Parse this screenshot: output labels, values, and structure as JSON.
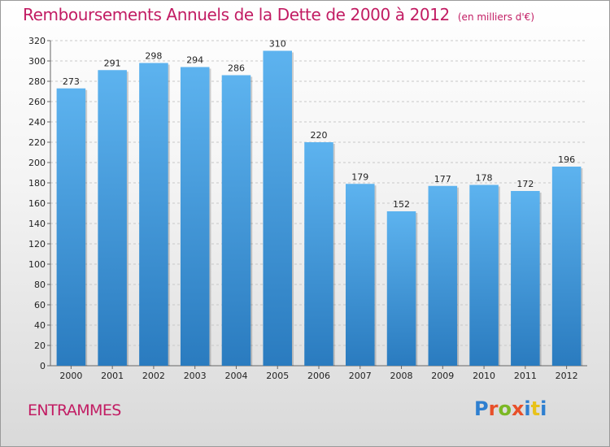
{
  "title": "Remboursements Annuels de la Dette de 2000 à 2012",
  "unit": "(en milliers d'€)",
  "commune": "ENTRAMMES",
  "logo": {
    "letters": [
      "P",
      "r",
      "o",
      "x",
      "i",
      "t",
      "i"
    ],
    "colors": [
      "#2e7fd0",
      "#e8502a",
      "#7bb824",
      "#e8502a",
      "#2e7fd0",
      "#e8c21a",
      "#2e7fd0"
    ]
  },
  "colors": {
    "bar_top": "#5db3ef",
    "bar_bottom": "#2a7bbf",
    "accent": "#c21c63"
  },
  "chart_data": {
    "type": "bar",
    "title": "Remboursements Annuels de la Dette de 2000 à 2012",
    "categories": [
      "2000",
      "2001",
      "2002",
      "2003",
      "2004",
      "2005",
      "2006",
      "2007",
      "2008",
      "2009",
      "2010",
      "2011",
      "2012"
    ],
    "values": [
      273,
      291,
      298,
      294,
      286,
      310,
      220,
      179,
      152,
      177,
      178,
      172,
      196
    ],
    "ylim": [
      0,
      320
    ],
    "yticks": [
      0,
      20,
      40,
      60,
      80,
      100,
      120,
      140,
      160,
      180,
      200,
      220,
      240,
      260,
      280,
      300,
      320
    ],
    "grid": true,
    "legend": "none"
  }
}
